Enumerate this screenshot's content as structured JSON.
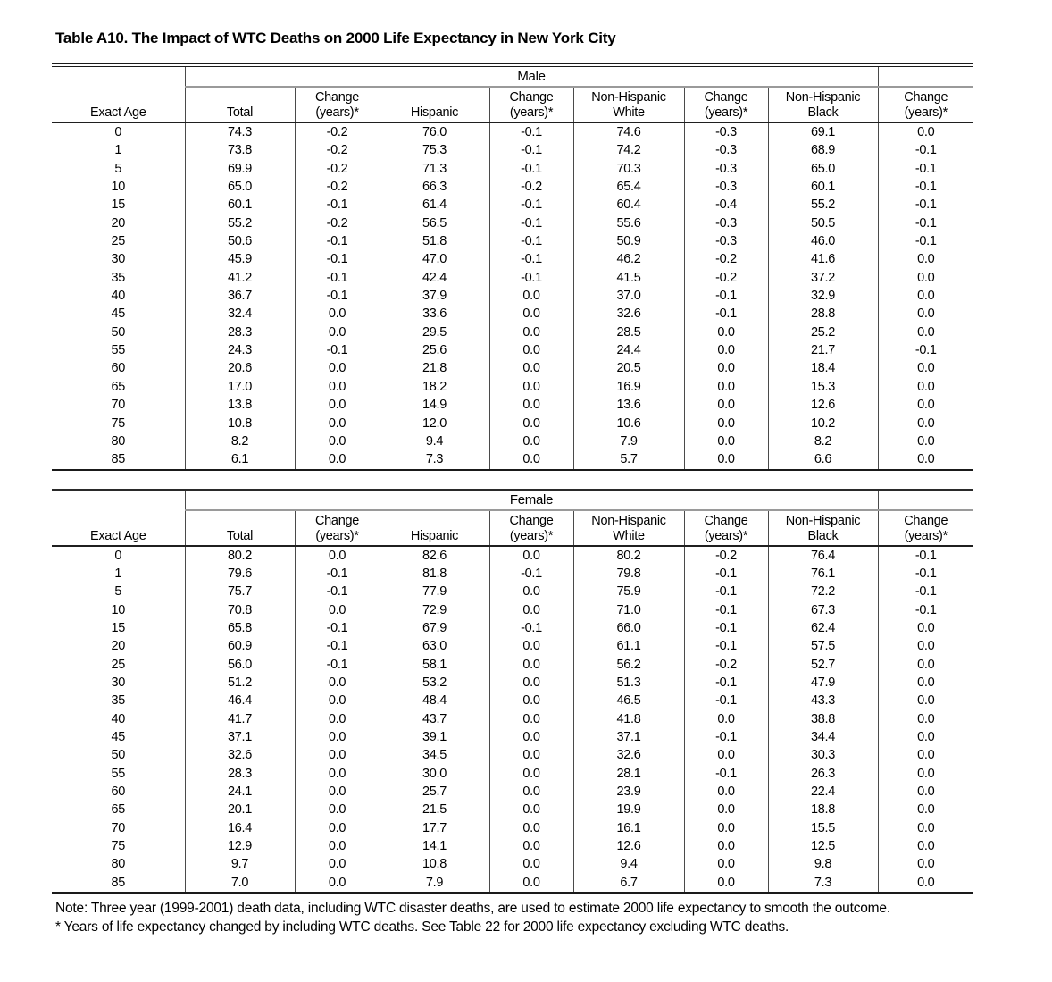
{
  "title": "Table A10. The Impact of WTC Deaths on 2000 Life Expectancy in New York City",
  "columns": [
    {
      "l1": "",
      "l2": "Exact Age"
    },
    {
      "l1": "",
      "l2": "Total"
    },
    {
      "l1": "Change",
      "l2": "(years)*"
    },
    {
      "l1": "",
      "l2": "Hispanic"
    },
    {
      "l1": "Change",
      "l2": "(years)*"
    },
    {
      "l1": "Non-Hispanic",
      "l2": "White"
    },
    {
      "l1": "Change",
      "l2": "(years)*"
    },
    {
      "l1": "Non-Hispanic",
      "l2": "Black"
    },
    {
      "l1": "Change",
      "l2": "(years)*"
    }
  ],
  "panels": [
    {
      "group_label": "Male",
      "rows": [
        [
          "0",
          "74.3",
          "-0.2",
          "76.0",
          "-0.1",
          "74.6",
          "-0.3",
          "69.1",
          "0.0"
        ],
        [
          "1",
          "73.8",
          "-0.2",
          "75.3",
          "-0.1",
          "74.2",
          "-0.3",
          "68.9",
          "-0.1"
        ],
        [
          "5",
          "69.9",
          "-0.2",
          "71.3",
          "-0.1",
          "70.3",
          "-0.3",
          "65.0",
          "-0.1"
        ],
        [
          "10",
          "65.0",
          "-0.2",
          "66.3",
          "-0.2",
          "65.4",
          "-0.3",
          "60.1",
          "-0.1"
        ],
        [
          "15",
          "60.1",
          "-0.1",
          "61.4",
          "-0.1",
          "60.4",
          "-0.4",
          "55.2",
          "-0.1"
        ],
        [
          "20",
          "55.2",
          "-0.2",
          "56.5",
          "-0.1",
          "55.6",
          "-0.3",
          "50.5",
          "-0.1"
        ],
        [
          "25",
          "50.6",
          "-0.1",
          "51.8",
          "-0.1",
          "50.9",
          "-0.3",
          "46.0",
          "-0.1"
        ],
        [
          "30",
          "45.9",
          "-0.1",
          "47.0",
          "-0.1",
          "46.2",
          "-0.2",
          "41.6",
          "0.0"
        ],
        [
          "35",
          "41.2",
          "-0.1",
          "42.4",
          "-0.1",
          "41.5",
          "-0.2",
          "37.2",
          "0.0"
        ],
        [
          "40",
          "36.7",
          "-0.1",
          "37.9",
          "0.0",
          "37.0",
          "-0.1",
          "32.9",
          "0.0"
        ],
        [
          "45",
          "32.4",
          "0.0",
          "33.6",
          "0.0",
          "32.6",
          "-0.1",
          "28.8",
          "0.0"
        ],
        [
          "50",
          "28.3",
          "0.0",
          "29.5",
          "0.0",
          "28.5",
          "0.0",
          "25.2",
          "0.0"
        ],
        [
          "55",
          "24.3",
          "-0.1",
          "25.6",
          "0.0",
          "24.4",
          "0.0",
          "21.7",
          "-0.1"
        ],
        [
          "60",
          "20.6",
          "0.0",
          "21.8",
          "0.0",
          "20.5",
          "0.0",
          "18.4",
          "0.0"
        ],
        [
          "65",
          "17.0",
          "0.0",
          "18.2",
          "0.0",
          "16.9",
          "0.0",
          "15.3",
          "0.0"
        ],
        [
          "70",
          "13.8",
          "0.0",
          "14.9",
          "0.0",
          "13.6",
          "0.0",
          "12.6",
          "0.0"
        ],
        [
          "75",
          "10.8",
          "0.0",
          "12.0",
          "0.0",
          "10.6",
          "0.0",
          "10.2",
          "0.0"
        ],
        [
          "80",
          "8.2",
          "0.0",
          "9.4",
          "0.0",
          "7.9",
          "0.0",
          "8.2",
          "0.0"
        ],
        [
          "85",
          "6.1",
          "0.0",
          "7.3",
          "0.0",
          "5.7",
          "0.0",
          "6.6",
          "0.0"
        ]
      ]
    },
    {
      "group_label": "Female",
      "rows": [
        [
          "0",
          "80.2",
          "0.0",
          "82.6",
          "0.0",
          "80.2",
          "-0.2",
          "76.4",
          "-0.1"
        ],
        [
          "1",
          "79.6",
          "-0.1",
          "81.8",
          "-0.1",
          "79.8",
          "-0.1",
          "76.1",
          "-0.1"
        ],
        [
          "5",
          "75.7",
          "-0.1",
          "77.9",
          "0.0",
          "75.9",
          "-0.1",
          "72.2",
          "-0.1"
        ],
        [
          "10",
          "70.8",
          "0.0",
          "72.9",
          "0.0",
          "71.0",
          "-0.1",
          "67.3",
          "-0.1"
        ],
        [
          "15",
          "65.8",
          "-0.1",
          "67.9",
          "-0.1",
          "66.0",
          "-0.1",
          "62.4",
          "0.0"
        ],
        [
          "20",
          "60.9",
          "-0.1",
          "63.0",
          "0.0",
          "61.1",
          "-0.1",
          "57.5",
          "0.0"
        ],
        [
          "25",
          "56.0",
          "-0.1",
          "58.1",
          "0.0",
          "56.2",
          "-0.2",
          "52.7",
          "0.0"
        ],
        [
          "30",
          "51.2",
          "0.0",
          "53.2",
          "0.0",
          "51.3",
          "-0.1",
          "47.9",
          "0.0"
        ],
        [
          "35",
          "46.4",
          "0.0",
          "48.4",
          "0.0",
          "46.5",
          "-0.1",
          "43.3",
          "0.0"
        ],
        [
          "40",
          "41.7",
          "0.0",
          "43.7",
          "0.0",
          "41.8",
          "0.0",
          "38.8",
          "0.0"
        ],
        [
          "45",
          "37.1",
          "0.0",
          "39.1",
          "0.0",
          "37.1",
          "-0.1",
          "34.4",
          "0.0"
        ],
        [
          "50",
          "32.6",
          "0.0",
          "34.5",
          "0.0",
          "32.6",
          "0.0",
          "30.3",
          "0.0"
        ],
        [
          "55",
          "28.3",
          "0.0",
          "30.0",
          "0.0",
          "28.1",
          "-0.1",
          "26.3",
          "0.0"
        ],
        [
          "60",
          "24.1",
          "0.0",
          "25.7",
          "0.0",
          "23.9",
          "0.0",
          "22.4",
          "0.0"
        ],
        [
          "65",
          "20.1",
          "0.0",
          "21.5",
          "0.0",
          "19.9",
          "0.0",
          "18.8",
          "0.0"
        ],
        [
          "70",
          "16.4",
          "0.0",
          "17.7",
          "0.0",
          "16.1",
          "0.0",
          "15.5",
          "0.0"
        ],
        [
          "75",
          "12.9",
          "0.0",
          "14.1",
          "0.0",
          "12.6",
          "0.0",
          "12.5",
          "0.0"
        ],
        [
          "80",
          "9.7",
          "0.0",
          "10.8",
          "0.0",
          "9.4",
          "0.0",
          "9.8",
          "0.0"
        ],
        [
          "85",
          "7.0",
          "0.0",
          "7.9",
          "0.0",
          "6.7",
          "0.0",
          "7.3",
          "0.0"
        ]
      ]
    }
  ],
  "notes": [
    "Note: Three year (1999-2001) death data, including WTC disaster deaths, are used to estimate 2000 life expectancy to smooth the outcome.",
    "* Years of life expectancy changed by including WTC deaths.  See Table 22 for 2000 life expectancy excluding WTC deaths."
  ]
}
